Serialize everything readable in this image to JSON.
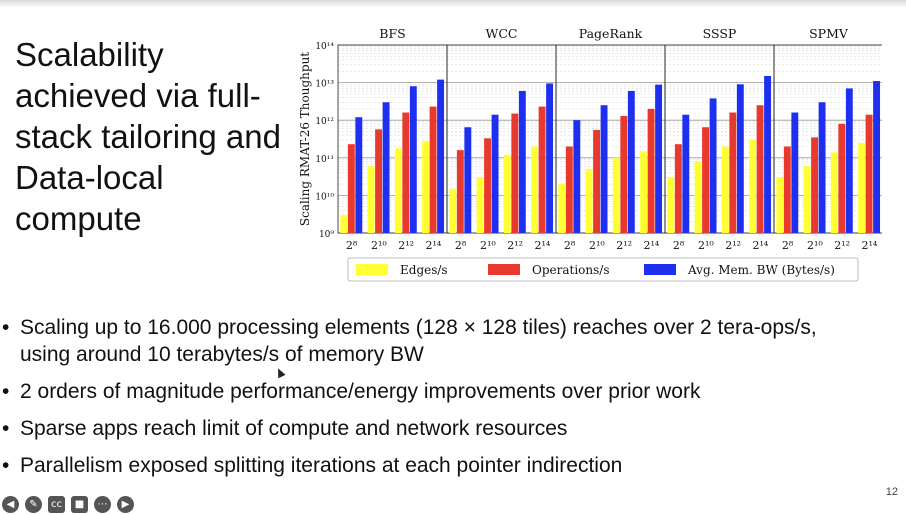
{
  "slide": {
    "title": "Scalability achieved via full-stack tailoring and Data-local compute",
    "page_number": "12",
    "bullets": [
      "Scaling up to 16.000 processing elements (128 × 128 tiles) reaches over 2 tera-ops/s, using around 10 terabytes/s of memory BW",
      "2 orders of magnitude performance/energy improvements over prior work",
      "Sparse apps reach limit of compute and network resources",
      "Parallelism exposed splitting iterations at each pointer indirection"
    ],
    "controls": [
      "back-icon",
      "pen-icon",
      "captions-icon",
      "video-icon",
      "more-icon",
      "forward-icon"
    ]
  },
  "chart_data": {
    "type": "bar",
    "ylabel": "Scaling RMAT-26 Thoughput",
    "yscale": "log",
    "ylim": [
      1000000000.0,
      100000000000000.0
    ],
    "ytick_labels": [
      "10⁹",
      "10¹⁰",
      "10¹¹",
      "10¹²",
      "10¹³",
      "10¹⁴"
    ],
    "grid": true,
    "legend_position": "bottom",
    "colors": {
      "Edges/s": "#ffff33",
      "Operations/s": "#e8392e",
      "Avg. Mem. BW (Bytes/s)": "#1f2ff0"
    },
    "panels": [
      {
        "title": "BFS",
        "categories": [
          "2⁸",
          "2¹⁰",
          "2¹²",
          "2¹⁴"
        ],
        "series": [
          {
            "name": "Edges/s",
            "values": [
              3000000000.0,
              60000000000.0,
              180000000000.0,
              280000000000.0
            ]
          },
          {
            "name": "Operations/s",
            "values": [
              230000000000.0,
              570000000000.0,
              1600000000000.0,
              2300000000000.0
            ]
          },
          {
            "name": "Avg. Mem. BW (Bytes/s)",
            "values": [
              1200000000000.0,
              3000000000000.0,
              8000000000000.0,
              12000000000000.0
            ]
          }
        ]
      },
      {
        "title": "WCC",
        "categories": [
          "2⁸",
          "2¹⁰",
          "2¹²",
          "2¹⁴"
        ],
        "series": [
          {
            "name": "Edges/s",
            "values": [
              15000000000.0,
              30000000000.0,
              120000000000.0,
              200000000000.0
            ]
          },
          {
            "name": "Operations/s",
            "values": [
              160000000000.0,
              330000000000.0,
              1500000000000.0,
              2300000000000.0
            ]
          },
          {
            "name": "Avg. Mem. BW (Bytes/s)",
            "values": [
              650000000000.0,
              1400000000000.0,
              6000000000000.0,
              9500000000000.0
            ]
          }
        ]
      },
      {
        "title": "PageRank",
        "categories": [
          "2⁸",
          "2¹⁰",
          "2¹²",
          "2¹⁴"
        ],
        "series": [
          {
            "name": "Edges/s",
            "values": [
              20000000000.0,
              50000000000.0,
              100000000000.0,
              150000000000.0
            ]
          },
          {
            "name": "Operations/s",
            "values": [
              200000000000.0,
              550000000000.0,
              1300000000000.0,
              2000000000000.0
            ]
          },
          {
            "name": "Avg. Mem. BW (Bytes/s)",
            "values": [
              1000000000000.0,
              2500000000000.0,
              6000000000000.0,
              8800000000000.0
            ]
          }
        ]
      },
      {
        "title": "SSSP",
        "categories": [
          "2⁸",
          "2¹⁰",
          "2¹²",
          "2¹⁴"
        ],
        "series": [
          {
            "name": "Edges/s",
            "values": [
              30000000000.0,
              80000000000.0,
              200000000000.0,
              300000000000.0
            ]
          },
          {
            "name": "Operations/s",
            "values": [
              230000000000.0,
              650000000000.0,
              1600000000000.0,
              2500000000000.0
            ]
          },
          {
            "name": "Avg. Mem. BW (Bytes/s)",
            "values": [
              1400000000000.0,
              3800000000000.0,
              9000000000000.0,
              15000000000000.0
            ]
          }
        ]
      },
      {
        "title": "SPMV",
        "categories": [
          "2⁸",
          "2¹⁰",
          "2¹²",
          "2¹⁴"
        ],
        "series": [
          {
            "name": "Edges/s",
            "values": [
              30000000000.0,
              60000000000.0,
              140000000000.0,
              250000000000.0
            ]
          },
          {
            "name": "Operations/s",
            "values": [
              200000000000.0,
              350000000000.0,
              800000000000.0,
              1400000000000.0
            ]
          },
          {
            "name": "Avg. Mem. BW (Bytes/s)",
            "values": [
              1600000000000.0,
              3000000000000.0,
              7000000000000.0,
              11000000000000.0
            ]
          }
        ]
      }
    ]
  }
}
